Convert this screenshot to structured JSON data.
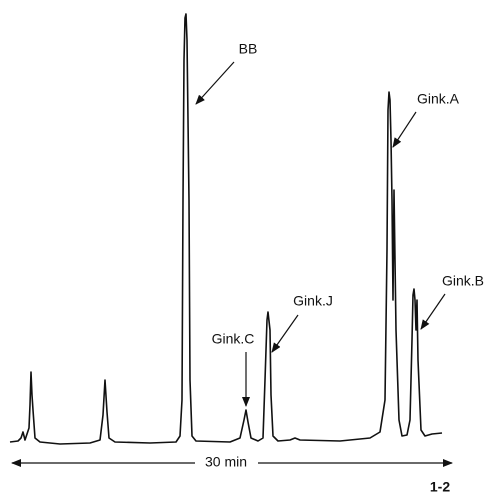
{
  "labels": {
    "bb": "BB",
    "gink_a": "Gink.A",
    "gink_b": "Gink.B",
    "gink_j": "Gink.J",
    "gink_c": "Gink.C"
  },
  "time_axis": "30 min",
  "figure_id": "1-2"
}
